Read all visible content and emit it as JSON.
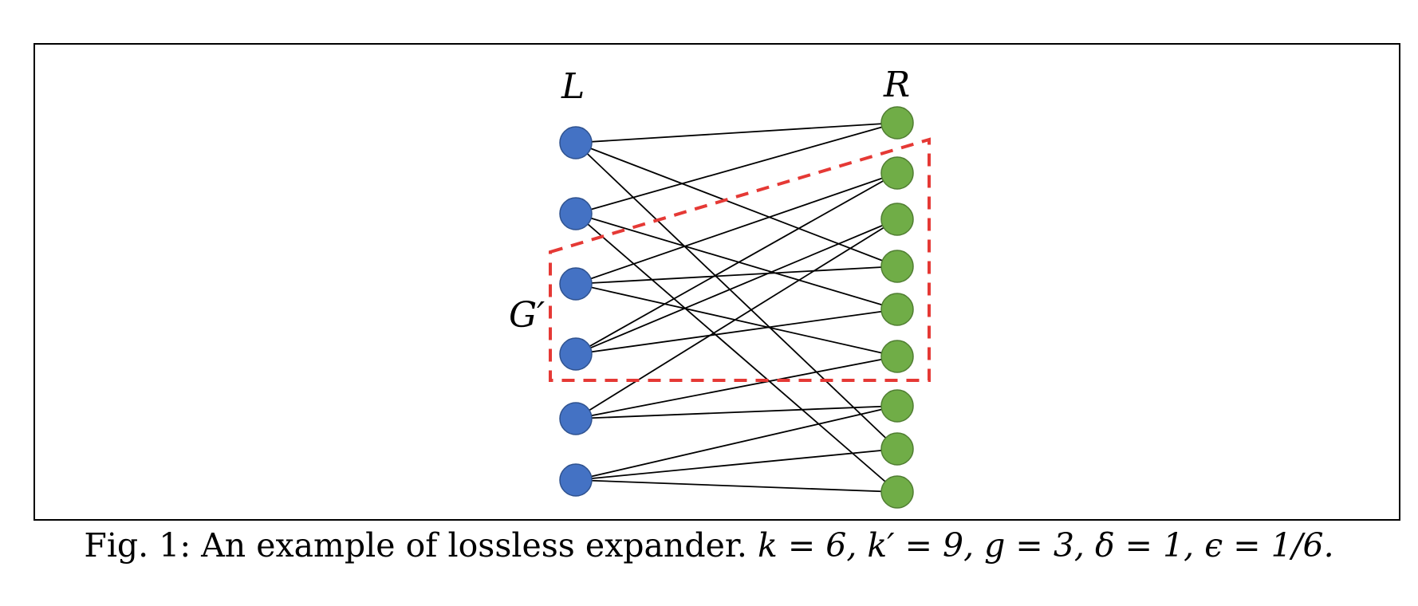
{
  "diagram": {
    "left_label": "L",
    "right_label": "R",
    "subgraph_label": "G′",
    "left_node_count": 6,
    "right_node_count": 9,
    "left_color": "#4472C4",
    "right_color": "#70AD47",
    "subgraph_border_color": "#E53935",
    "edges": [
      [
        1,
        1
      ],
      [
        1,
        4
      ],
      [
        1,
        8
      ],
      [
        2,
        1
      ],
      [
        2,
        5
      ],
      [
        2,
        9
      ],
      [
        3,
        2
      ],
      [
        3,
        4
      ],
      [
        3,
        6
      ],
      [
        4,
        2
      ],
      [
        4,
        3
      ],
      [
        4,
        5
      ],
      [
        5,
        3
      ],
      [
        5,
        6
      ],
      [
        5,
        7
      ],
      [
        6,
        7
      ],
      [
        6,
        8
      ],
      [
        6,
        9
      ]
    ]
  },
  "caption": {
    "prefix": "Fig. 1: An example of lossless expander.",
    "math": "k = 6, k′ = 9, g = 3, δ = 1, ϵ = 1/6."
  }
}
